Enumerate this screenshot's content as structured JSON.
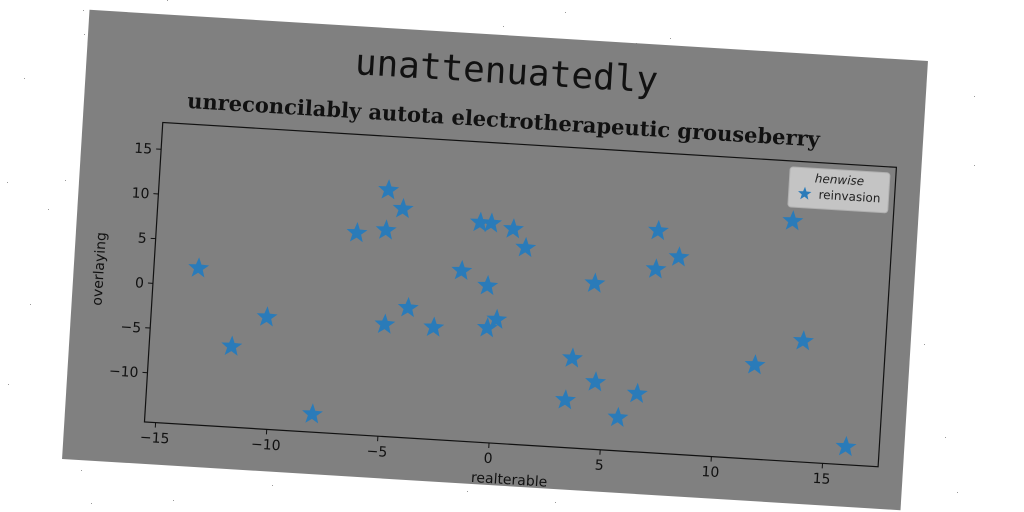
{
  "chart_data": {
    "type": "scatter",
    "suptitle": "unattenuatedly",
    "title": "unreconcilably autota electrotherapeutic grouseberry",
    "xlabel": "realterable",
    "ylabel": "overlaying",
    "xlim": [
      -15.5,
      17.5
    ],
    "ylim": [
      -15.5,
      18
    ],
    "xticks": [
      -15,
      -10,
      -5,
      0,
      5,
      10,
      15
    ],
    "yticks": [
      -10,
      -5,
      0,
      5,
      10,
      15
    ],
    "grid": false,
    "legend": {
      "title": "henwise",
      "placement": "top-right"
    },
    "series": [
      {
        "name": "reinvasion",
        "marker": "star",
        "color": "#2a7bb9",
        "points": [
          [
            -13.5,
            2.0
          ],
          [
            -11.8,
            -6.5
          ],
          [
            -10.3,
            -3.0
          ],
          [
            -8.0,
            -13.5
          ],
          [
            -6.5,
            7.0
          ],
          [
            -5.2,
            12.0
          ],
          [
            -5.2,
            7.5
          ],
          [
            -5.0,
            -3.0
          ],
          [
            -4.5,
            10.0
          ],
          [
            -4.0,
            -1.0
          ],
          [
            -2.8,
            -3.0
          ],
          [
            -1.7,
            3.5
          ],
          [
            -1.0,
            9.0
          ],
          [
            -0.5,
            9.0
          ],
          [
            -0.5,
            2.0
          ],
          [
            -0.4,
            -2.7
          ],
          [
            0.0,
            -1.7
          ],
          [
            0.5,
            8.5
          ],
          [
            1.1,
            6.5
          ],
          [
            3.3,
            -10.2
          ],
          [
            3.5,
            -5.5
          ],
          [
            4.3,
            3.0
          ],
          [
            4.6,
            -8.0
          ],
          [
            5.7,
            -11.8
          ],
          [
            6.5,
            -9.0
          ],
          [
            7.0,
            9.3
          ],
          [
            7.0,
            5.0
          ],
          [
            8.0,
            6.5
          ],
          [
            11.7,
            -5.0
          ],
          [
            13.0,
            11.3
          ],
          [
            13.8,
            -2.0
          ],
          [
            16.0,
            -13.5
          ]
        ]
      }
    ]
  }
}
